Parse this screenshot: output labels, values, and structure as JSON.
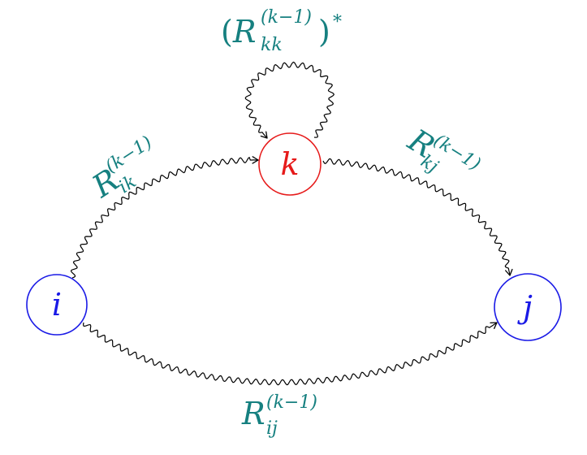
{
  "colors": {
    "node_i": "#1a1ae6",
    "node_j": "#1a1ae6",
    "node_k": "#e61a1a",
    "edge_label": "#168080",
    "edge": "#000000"
  },
  "nodes": {
    "i": {
      "label": "i"
    },
    "k": {
      "label": "k"
    },
    "j": {
      "label": "j"
    }
  },
  "edges": {
    "self_loop_k": {
      "base": "R",
      "sub": "kk",
      "sup": "(k−1)",
      "open": "(",
      "close": ")",
      "star": "*"
    },
    "i_to_k": {
      "base": "R",
      "sub": "ik",
      "sup": "(k−1)"
    },
    "k_to_j": {
      "base": "R",
      "sub": "kj",
      "sup": "(k−1)"
    },
    "i_to_j": {
      "base": "R",
      "sub": "ij",
      "sup": "(k−1)"
    }
  }
}
